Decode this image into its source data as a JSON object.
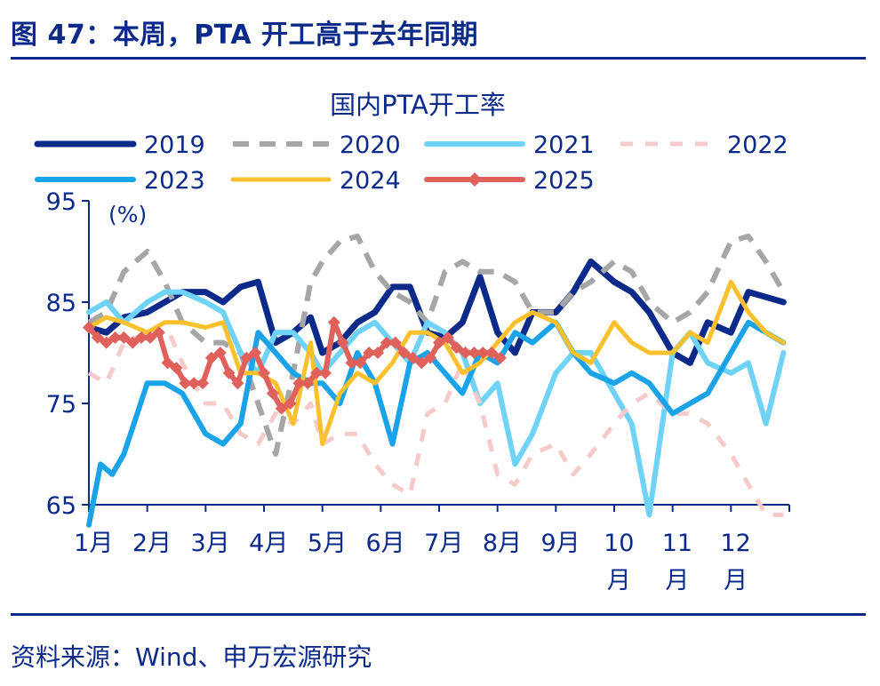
{
  "figure": {
    "title": "图 47：本周，PTA 开工高于去年同期",
    "source": "资料来源：Wind、申万宏源研究"
  },
  "colors": {
    "brand": "#0b2a8a",
    "2019": "#0b2a8a",
    "2020": "#a6a6a6",
    "2021": "#6fd3f7",
    "2022": "#f6caca",
    "2023": "#1aa3e8",
    "2024": "#fbc02d",
    "2025": "#e0605c"
  },
  "chart_data": {
    "type": "line",
    "title": "国内PTA开工率",
    "ylabel": "(%)",
    "xlabel": "",
    "ylim": [
      65,
      95
    ],
    "yticks": [
      65,
      75,
      85,
      95
    ],
    "x_range": [
      0,
      12
    ],
    "month_ticks": [
      {
        "pos": 0,
        "label": "1月"
      },
      {
        "pos": 1,
        "label": "2月"
      },
      {
        "pos": 2,
        "label": "3月"
      },
      {
        "pos": 3,
        "label": "4月"
      },
      {
        "pos": 4,
        "label": "5月"
      },
      {
        "pos": 5,
        "label": "6月"
      },
      {
        "pos": 6,
        "label": "7月"
      },
      {
        "pos": 7,
        "label": "8月"
      },
      {
        "pos": 8,
        "label": "9月"
      },
      {
        "pos": 9,
        "label": "10月"
      },
      {
        "pos": 10,
        "label": "11月"
      },
      {
        "pos": 11,
        "label": "12月"
      }
    ],
    "legend": "top",
    "series": [
      {
        "name": "2019",
        "color": "#0b2a8a",
        "dash": "",
        "width": 7,
        "x": [
          0,
          0.3,
          0.6,
          1,
          1.3,
          1.6,
          2,
          2.3,
          2.6,
          2.9,
          3.2,
          3.5,
          3.8,
          4,
          4.3,
          4.6,
          4.9,
          5.2,
          5.5,
          5.8,
          6.1,
          6.4,
          6.7,
          7,
          7.3,
          7.6,
          8,
          8.3,
          8.6,
          9,
          9.3,
          9.6,
          10,
          10.3,
          10.6,
          11,
          11.3,
          11.6,
          11.9
        ],
        "y": [
          82.5,
          82,
          83.5,
          84,
          85,
          86,
          86,
          85,
          86.5,
          87,
          81,
          82,
          83.5,
          80,
          81,
          83,
          84,
          86.5,
          86.5,
          82,
          81.5,
          83,
          87.5,
          82,
          80,
          84,
          84,
          86,
          89,
          87,
          86,
          84,
          80,
          79,
          83,
          82,
          86,
          85.5,
          85
        ]
      },
      {
        "name": "2020",
        "color": "#a6a6a6",
        "dash": "18,12",
        "width": 6,
        "x": [
          0,
          0.3,
          0.6,
          1,
          1.3,
          1.6,
          2,
          2.3,
          2.6,
          2.9,
          3.2,
          3.5,
          3.8,
          4,
          4.3,
          4.6,
          4.9,
          5.2,
          5.5,
          5.8,
          6.1,
          6.4,
          6.7,
          7,
          7.3,
          7.6,
          8,
          8.3,
          8.6,
          9,
          9.3,
          9.6,
          10,
          10.3,
          10.6,
          11,
          11.3,
          11.6,
          11.9
        ],
        "y": [
          83,
          84,
          88,
          90,
          87,
          83,
          81,
          81,
          80,
          75,
          70,
          78,
          87,
          89,
          91,
          91.5,
          88,
          86,
          85,
          83,
          88,
          89,
          88,
          88,
          87,
          84,
          84,
          86,
          87,
          89,
          88,
          85,
          83,
          84,
          86,
          91,
          91.5,
          89,
          86
        ]
      },
      {
        "name": "2021",
        "color": "#6fd3f7",
        "dash": "",
        "width": 6,
        "x": [
          0,
          0.3,
          0.6,
          1,
          1.3,
          1.6,
          2,
          2.3,
          2.6,
          2.9,
          3.2,
          3.5,
          3.8,
          4,
          4.3,
          4.6,
          4.9,
          5.2,
          5.5,
          5.8,
          6.1,
          6.4,
          6.7,
          7,
          7.3,
          7.6,
          8,
          8.3,
          8.6,
          9,
          9.3,
          9.6,
          10,
          10.3,
          10.6,
          11,
          11.3,
          11.6,
          11.9
        ],
        "y": [
          84,
          85,
          83,
          85,
          86,
          86,
          85,
          84,
          80,
          78,
          82,
          82,
          80,
          78,
          80,
          82,
          83,
          81,
          79,
          83,
          82,
          80,
          75,
          77,
          69,
          72,
          78,
          80,
          80,
          76,
          73,
          64,
          80,
          82,
          79,
          78,
          79,
          73,
          80
        ]
      },
      {
        "name": "2022",
        "color": "#f6caca",
        "dash": "14,14",
        "width": 5,
        "x": [
          0,
          0.3,
          0.6,
          1,
          1.3,
          1.6,
          2,
          2.3,
          2.6,
          2.9,
          3.2,
          3.5,
          3.8,
          4,
          4.3,
          4.6,
          4.9,
          5.2,
          5.5,
          5.8,
          6.1,
          6.4,
          6.7,
          7,
          7.3,
          7.6,
          8,
          8.3,
          8.6,
          9,
          9.3,
          9.6,
          10,
          10.3,
          10.6,
          11,
          11.3,
          11.6,
          11.9
        ],
        "y": [
          78,
          77,
          81,
          82,
          83,
          79,
          75,
          75,
          72,
          71,
          74,
          73,
          75,
          71,
          72,
          72,
          69,
          67,
          66,
          74,
          75,
          79,
          75,
          68,
          67,
          70,
          71,
          68,
          70,
          73,
          75,
          76,
          74,
          74,
          73,
          70,
          67,
          64,
          64
        ]
      },
      {
        "name": "2023",
        "color": "#1aa3e8",
        "dash": "",
        "width": 6,
        "x": [
          0,
          0.2,
          0.4,
          0.6,
          1,
          1.3,
          1.6,
          2,
          2.3,
          2.6,
          2.9,
          3.2,
          3.5,
          3.8,
          4,
          4.3,
          4.6,
          4.9,
          5.2,
          5.5,
          5.8,
          6.1,
          6.4,
          6.7,
          7,
          7.3,
          7.6,
          8,
          8.3,
          8.6,
          9,
          9.3,
          9.6,
          10,
          10.3,
          10.6,
          11,
          11.3,
          11.6,
          11.9
        ],
        "y": [
          63,
          69,
          68,
          70,
          77,
          77,
          76,
          72,
          71,
          73,
          82,
          80,
          78,
          77,
          77,
          75,
          80,
          77,
          71,
          79,
          80,
          78,
          76,
          80,
          79,
          82,
          81,
          83,
          80,
          78,
          77,
          78,
          77,
          74,
          75,
          76,
          80,
          83,
          82,
          81
        ]
      },
      {
        "name": "2024",
        "color": "#fbc02d",
        "dash": "",
        "width": 5,
        "x": [
          0,
          0.3,
          0.6,
          1,
          1.3,
          1.6,
          2,
          2.3,
          2.6,
          2.9,
          3.2,
          3.5,
          3.8,
          4,
          4.3,
          4.6,
          4.9,
          5.2,
          5.5,
          5.8,
          6.1,
          6.4,
          6.7,
          7,
          7.3,
          7.6,
          8,
          8.3,
          8.6,
          9,
          9.3,
          9.6,
          10,
          10.3,
          10.6,
          11,
          11.3,
          11.6,
          11.9
        ],
        "y": [
          82.5,
          83.5,
          83,
          82,
          83,
          83,
          82.5,
          83,
          78,
          78,
          77,
          73,
          81,
          71,
          76,
          78,
          77,
          79,
          82,
          82,
          81,
          78,
          79,
          81,
          83,
          84,
          83,
          80,
          79,
          83,
          81,
          80,
          80,
          82,
          81,
          87,
          84,
          82,
          81
        ]
      },
      {
        "name": "2025",
        "color": "#e0605c",
        "dash": "",
        "width": 6,
        "marker": "diamond",
        "x": [
          0,
          0.15,
          0.3,
          0.45,
          0.6,
          0.75,
          0.9,
          1.05,
          1.2,
          1.35,
          1.5,
          1.65,
          1.8,
          1.95,
          2.1,
          2.25,
          2.4,
          2.55,
          2.7,
          2.85,
          3,
          3.15,
          3.3,
          3.45,
          3.6,
          3.75,
          3.9,
          4.05,
          4.2,
          4.35,
          4.5,
          4.65,
          4.8,
          4.95,
          5.1,
          5.25,
          5.4,
          5.55,
          5.7,
          5.85,
          6,
          6.15,
          6.3,
          6.45,
          6.6,
          6.75,
          6.9,
          7.05
        ],
        "y": [
          82.5,
          81.5,
          81,
          81.5,
          81.5,
          81,
          81.5,
          81.5,
          82,
          79,
          78.5,
          77,
          77,
          77,
          79.5,
          80,
          78,
          77,
          79.5,
          80,
          78,
          76,
          74.5,
          75,
          77,
          77,
          78,
          78,
          83,
          81,
          79,
          79,
          80,
          80,
          81,
          81,
          80,
          79.5,
          79,
          79.5,
          81,
          81.5,
          80.5,
          80,
          80,
          80,
          80,
          79.5
        ]
      }
    ]
  }
}
